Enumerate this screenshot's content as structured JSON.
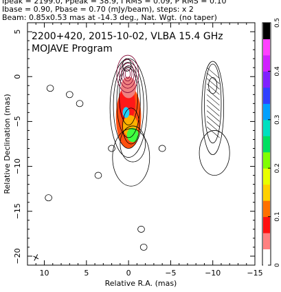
{
  "header": {
    "line1": "Ipeak = 2199.0, Ppeak = 38.9, I RMS = 0.09, P RMS = 0.10",
    "line2": "Ibase = 0.90, Pbase = 0.70 (mJy/beam), steps: x 2",
    "line3": "Beam: 0.85x0.53 mas at -14.3 deg., Nat. Wgt. (no taper)"
  },
  "chart_data": {
    "type": "contour",
    "title": "2200+420, 2015-10-02, VLBA 15.4 GHz",
    "subtitle": "MOJAVE Program",
    "xlabel": "Relative R.A. (mas)",
    "ylabel": "Relative Declination (mas)",
    "xlim": [
      12,
      -15
    ],
    "ylim": [
      -21,
      6
    ],
    "x_ticks": [
      10,
      5,
      0,
      -5,
      -10,
      -15
    ],
    "y_ticks": [
      5,
      0,
      -5,
      -10,
      -15,
      -20
    ],
    "colorbar": {
      "label_range": [
        0,
        0.5
      ],
      "ticks": [
        "0",
        "0.1",
        "0.2",
        "0.3",
        "0.4",
        "0.5"
      ],
      "colors": [
        "#ffffff",
        "#ff8080",
        "#ff1010",
        "#ff7000",
        "#ffd000",
        "#e8ff00",
        "#80ff00",
        "#00e060",
        "#00e0c0",
        "#00a0ff",
        "#3040ff",
        "#8020ff",
        "#d020ff",
        "#ff40ff",
        "#000000"
      ]
    },
    "core": {
      "x": 0,
      "y": 0
    },
    "jet_series": [
      {
        "name": "",
        "x": 0.2,
        "y": 1.3
      },
      {
        "name": "",
        "x": 0,
        "y": 0
      },
      {
        "name": "",
        "x": 0,
        "y": -2
      },
      {
        "name": "",
        "x": -0.3,
        "y": -4.5
      },
      {
        "name": "",
        "x": -0.6,
        "y": -6.5
      }
    ]
  }
}
